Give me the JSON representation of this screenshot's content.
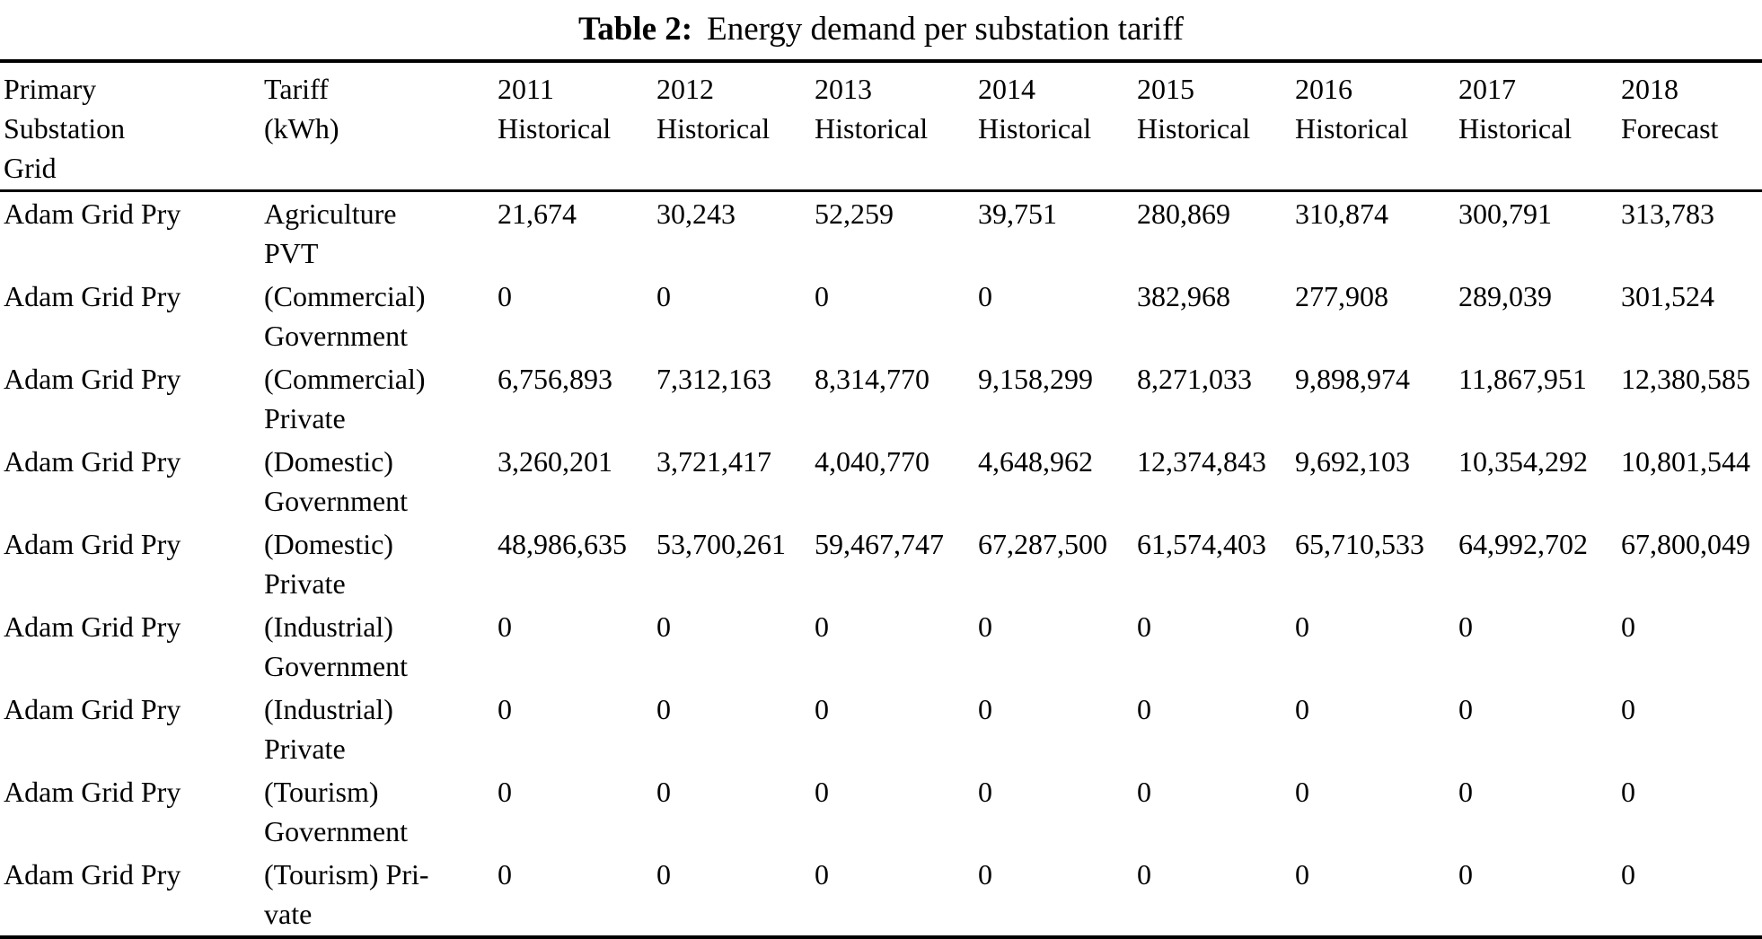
{
  "caption": {
    "label": "Table 2:",
    "text": "Energy demand per substation tariff"
  },
  "colors": {
    "text": "#000000",
    "background": "#ffffff",
    "rule": "#000000"
  },
  "table": {
    "columns": [
      "Primary\nSubstation\nGrid",
      "Tariff\n(kWh)",
      "2011\nHistorical",
      "2012\nHistorical",
      "2013\nHistorical",
      "2014\nHistorical",
      "2015\nHistorical",
      "2016\nHistorical",
      "2017\nHistorical",
      "2018\nForecast"
    ],
    "rows": [
      {
        "grid": "Adam Grid Pry",
        "tariff": "Agriculture\nPVT",
        "values": [
          "21,674",
          "30,243",
          "52,259",
          "39,751",
          "280,869",
          "310,874",
          "300,791",
          "313,783"
        ]
      },
      {
        "grid": "Adam Grid Pry",
        "tariff": "(Commercial)\nGovernment",
        "values": [
          "0",
          "0",
          "0",
          "0",
          "382,968",
          "277,908",
          "289,039",
          "301,524"
        ]
      },
      {
        "grid": "Adam Grid Pry",
        "tariff": "(Commercial)\nPrivate",
        "values": [
          "6,756,893",
          "7,312,163",
          "8,314,770",
          "9,158,299",
          "8,271,033",
          "9,898,974",
          "11,867,951",
          "12,380,585"
        ]
      },
      {
        "grid": "Adam Grid Pry",
        "tariff": "(Domestic)\nGovernment",
        "values": [
          "3,260,201",
          "3,721,417",
          "4,040,770",
          "4,648,962",
          "12,374,843",
          "9,692,103",
          "10,354,292",
          "10,801,544"
        ]
      },
      {
        "grid": "Adam Grid Pry",
        "tariff": "(Domestic)\nPrivate",
        "values": [
          "48,986,635",
          "53,700,261",
          "59,467,747",
          "67,287,500",
          "61,574,403",
          "65,710,533",
          "64,992,702",
          "67,800,049"
        ]
      },
      {
        "grid": "Adam Grid Pry",
        "tariff": "(Industrial)\nGovernment",
        "values": [
          "0",
          "0",
          "0",
          "0",
          "0",
          "0",
          "0",
          "0"
        ]
      },
      {
        "grid": "Adam Grid Pry",
        "tariff": "(Industrial)\nPrivate",
        "values": [
          "0",
          "0",
          "0",
          "0",
          "0",
          "0",
          "0",
          "0"
        ]
      },
      {
        "grid": "Adam Grid Pry",
        "tariff": "(Tourism)\nGovernment",
        "values": [
          "0",
          "0",
          "0",
          "0",
          "0",
          "0",
          "0",
          "0"
        ]
      },
      {
        "grid": "Adam Grid Pry",
        "tariff": "(Tourism) Pri-\nvate",
        "values": [
          "0",
          "0",
          "0",
          "0",
          "0",
          "0",
          "0",
          "0"
        ]
      }
    ]
  }
}
